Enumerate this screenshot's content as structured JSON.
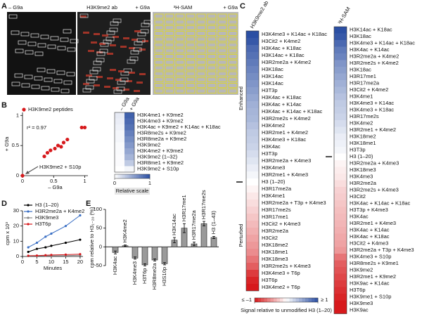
{
  "panel_labels": [
    "A",
    "B",
    "C",
    "D",
    "E"
  ],
  "blot": {
    "labels": [
      "– G9a",
      "H3K9me2 ab",
      "+ G9a",
      "³H-SAM",
      "+ G9a"
    ]
  },
  "chart_data": [
    {
      "type": "scatter",
      "xlabel": "– G9a",
      "ylabel": "+ G9a",
      "xlim": [
        0,
        1.05
      ],
      "ylim": [
        0,
        1.05
      ],
      "xticks": [
        0,
        0.5,
        1
      ],
      "yticks": [
        0,
        0.5,
        1
      ],
      "series": [
        {
          "name": "H3K9me2 peptides",
          "color": "#d7191c",
          "x": [
            0,
            0.35,
            0.4,
            0.45,
            0.52,
            0.57,
            0.62,
            0.66,
            0.72,
            0.95,
            1.0
          ],
          "values": [
            0,
            0.32,
            0.38,
            0.42,
            0.45,
            0.5,
            0.48,
            0.55,
            0.6,
            0.8,
            0.8
          ]
        }
      ],
      "annotations": [
        "r² = 0.97",
        "H3K9me2 + S10p"
      ]
    },
    {
      "type": "heatmap",
      "categories": [
        "H3K4me1 + K9me2",
        "H3K4me3 + K9me2",
        "H3K4ac + K9me2 + K14ac + K18ac",
        "H3R8me2s + K9me2",
        "H3R8me2a + K9me2",
        "H3K9me2",
        "H3K4me2 + K9me2",
        "H3K9me2 (1–32)",
        "H3R8me1 + K9me2",
        "H3K9me2 + S10p"
      ],
      "series": [
        {
          "name": "– G9a",
          "values": [
            0.12,
            0.1,
            0.08,
            0.05,
            0.05,
            0.03,
            0.03,
            0.02,
            0.02,
            0
          ]
        },
        {
          "name": "+ G9a",
          "values": [
            0.9,
            0.85,
            0.8,
            0.72,
            0.65,
            0.58,
            0.5,
            0.42,
            0.3,
            0.05
          ]
        }
      ],
      "vlim": [
        0,
        1
      ],
      "colors": [
        "#ffffff",
        "#2b4fa3"
      ],
      "colorbar": {
        "ticks": [
          0,
          1
        ],
        "label": "Relative scale"
      }
    },
    {
      "type": "heatmap",
      "title": "H3K9me2 ab",
      "group_labels": [
        "Enhanced",
        "Perturbed"
      ],
      "categories": [
        "H3K4me3 + K14ac + K18ac",
        "H3Cit2 + K4me2",
        "H3K4ac + K18ac",
        "H3K14ac + K18ac",
        "H3R2me2a + K4me2",
        "H3K18ac",
        "H3K14ac",
        "H3K14ac",
        "H3T3p",
        "H3K4ac + K18ac",
        "H3K4ac + K14ac",
        "H3K4ac + K14ac + K18ac",
        "H3R2me2s + K4me2",
        "H3K4me2",
        "H3R2me1 + K4me2",
        "H3K4me3 + K18ac",
        "H3K4ac",
        "H3T3p",
        "H3R2me2a + K4me3",
        "H3K4me3",
        "H3R2me1 + K4me3",
        "H3 (1–20)",
        "H3R17me2a",
        "H3K4me1",
        "H3R2me2a + T3p + K4me3",
        "H3R17me2s",
        "H3R17me1",
        "H3Cit2 + K4me3",
        "H3R2me2a",
        "H3Cit2",
        "H3K18me2",
        "H3K18me1",
        "H3K18me3",
        "H3R2me2s + K4me3",
        "H3K4me3 + T6p",
        "H3T6p",
        "H3K4me2 + T6p"
      ],
      "values": [
        1,
        0.95,
        0.85,
        0.8,
        0.75,
        0.7,
        0.65,
        0.6,
        0.55,
        0.5,
        0.45,
        0.42,
        0.4,
        0.35,
        0.3,
        0.28,
        0.25,
        0.2,
        0.15,
        0.1,
        0.05,
        0,
        -0.05,
        -0.1,
        -0.15,
        -0.2,
        -0.25,
        -0.3,
        -0.35,
        -0.4,
        -0.45,
        -0.5,
        -0.6,
        -0.7,
        -0.85,
        -0.95,
        -1
      ],
      "vlim": [
        -1,
        1
      ],
      "colors": [
        "#d7191c",
        "#ffffff",
        "#2b4fa3"
      ],
      "colorbar": {
        "ticks": [
          {
            "value": -1,
            "label": "≤ –1"
          },
          {
            "value": 1,
            "label": "≥ 1"
          }
        ],
        "label": "Signal relative to unmodified H3 (1–20)"
      }
    },
    {
      "type": "heatmap",
      "title": "³H-SAM",
      "categories": [
        "H3K14ac + K18ac",
        "H3K18ac",
        "H3K4me3 + K14ac + K18ac",
        "H3K4ac + K14ac",
        "H3R2me2a + K4me2",
        "H3R2me2s + K4me2",
        "H3K18ac",
        "H3R17me1",
        "H3R17me2a",
        "H3Cit2 + K4me2",
        "H3K4me1",
        "H3K4me3 + K14ac",
        "H3K4me3 + K18ac",
        "H3R17me2s",
        "H3K4me2",
        "H3R2me1 + K4me2",
        "H3K18me2",
        "H3K18me1",
        "H3T3p",
        "H3 (1–20)",
        "H3R2me2a + K4me3",
        "H3K18me3",
        "H3K4me3",
        "H3R2me2a",
        "H3R2me2s + K4me3",
        "H3Cit2",
        "H3K4ac + K14ac + K18ac",
        "H3T3p + K4me3",
        "H3K4ac",
        "H3R2me1 + K4me3",
        "H3K4ac + K14ac",
        "H3K4ac + K18ac",
        "H3Cit2 + K4me3",
        "H3R2me2a + T3p + K4me3",
        "H3K4me3 + S10p",
        "H3R8me2s + K9me1",
        "H3K9me2",
        "H3R2me1 + K9me2",
        "H3K9ac + K14ac",
        "H3T6p",
        "H3K9me1 + S10p",
        "H3K9me3",
        "H3K9ac"
      ],
      "values": [
        1,
        0.95,
        0.85,
        0.75,
        0.7,
        0.6,
        0.55,
        0.5,
        0.45,
        0.4,
        0.35,
        0.3,
        0.28,
        0.25,
        0.2,
        0.15,
        0.1,
        0.08,
        0.05,
        0,
        -0.05,
        -0.08,
        -0.1,
        -0.15,
        -0.2,
        -0.22,
        -0.25,
        -0.28,
        -0.3,
        -0.32,
        -0.35,
        -0.38,
        -0.4,
        -0.45,
        -0.6,
        -0.7,
        -0.75,
        -0.8,
        -0.85,
        -0.9,
        -0.95,
        -1,
        -1
      ],
      "vlim": [
        -1,
        1
      ],
      "colors": [
        "#d7191c",
        "#ffffff",
        "#2b4fa3"
      ]
    },
    {
      "type": "line",
      "xlabel": "Minutes",
      "ylabel": "cpm x 10³",
      "x": [
        2,
        5,
        8,
        10,
        15,
        20
      ],
      "xlim": [
        0,
        21
      ],
      "xticks": [
        0,
        5,
        10,
        15,
        20
      ],
      "ylim": [
        0,
        30
      ],
      "yticks": [
        0,
        10,
        20,
        30
      ],
      "series": [
        {
          "name": "H3 (1–20)",
          "color": "#000000",
          "values": [
            3,
            5,
            6,
            7,
            9,
            11
          ]
        },
        {
          "name": "H3R2me2a + K4me2",
          "color": "#3a6fc4",
          "values": [
            6,
            9,
            13,
            15,
            20,
            27
          ]
        },
        {
          "name": "H3K9me3",
          "color": "#888888",
          "values": [
            0.3,
            0.4,
            0.5,
            0.5,
            0.6,
            0.8
          ]
        },
        {
          "name": "H3T6p",
          "color": "#d7191c",
          "values": [
            0.5,
            0.6,
            0.8,
            1,
            1.2,
            1.5
          ]
        }
      ]
    },
    {
      "type": "bar",
      "ylabel": "cpm relative to H3₁₋₂₀ (%)",
      "categories": [
        "H3K4ac",
        "H3K4me2",
        "H3K4me3",
        "H3T6p",
        "H3R8me2a",
        "H3S10p",
        "H3K14ac",
        "H3R17me1",
        "H3R17me2a",
        "H3R17me2s",
        "H3 (1–43)"
      ],
      "values": [
        -15,
        3,
        -30,
        -48,
        -35,
        -45,
        18,
        50,
        8,
        62,
        25
      ],
      "errors": [
        4,
        2,
        3,
        3,
        3,
        3,
        7,
        12,
        5,
        6,
        3
      ],
      "color": "#9a9a9a",
      "ylim": [
        -50,
        100
      ],
      "yticks": [
        -50,
        0,
        50,
        100
      ]
    }
  ]
}
